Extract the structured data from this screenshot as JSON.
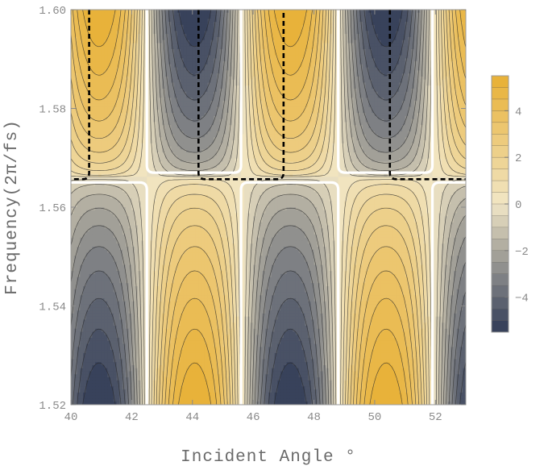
{
  "chart_data": {
    "type": "contour",
    "title": "",
    "xlabel": "Incident Angle °",
    "ylabel": "Frequency(2π/fs)",
    "xlim": [
      40,
      53
    ],
    "ylim": [
      1.52,
      1.6
    ],
    "x_ticks": [
      40,
      42,
      44,
      46,
      48,
      50,
      52
    ],
    "y_ticks": [
      1.52,
      1.54,
      1.56,
      1.58,
      1.6
    ],
    "x_tick_labels": [
      "40",
      "42",
      "44",
      "46",
      "48",
      "50",
      "52"
    ],
    "y_tick_labels": [
      "1.52",
      "1.54",
      "1.56",
      "1.58",
      "1.60"
    ],
    "colorbar": {
      "range": [
        -5.5,
        5.5
      ],
      "ticks": [
        -4,
        -2,
        0,
        2,
        4
      ],
      "tick_labels": [
        "−4",
        "−2",
        "0",
        "2",
        "4"
      ],
      "levels": 22,
      "low_color": "#2f3a56",
      "mid_color": "#f1e6c6",
      "high_color": "#e8b033"
    },
    "zero_contours": {
      "color": "#ffffff",
      "vertical_angles": [
        42.5,
        45.6,
        48.8,
        51.9
      ],
      "frequency_band": [
        1.5655,
        1.5665
      ]
    },
    "dashed_boundaries": {
      "color": "#000000",
      "style": "dashed",
      "bottom_frequency": 1.5655,
      "angles": [
        40.6,
        44.2,
        47.0,
        50.5
      ]
    },
    "grid": false,
    "legend": "colorbar-right"
  }
}
